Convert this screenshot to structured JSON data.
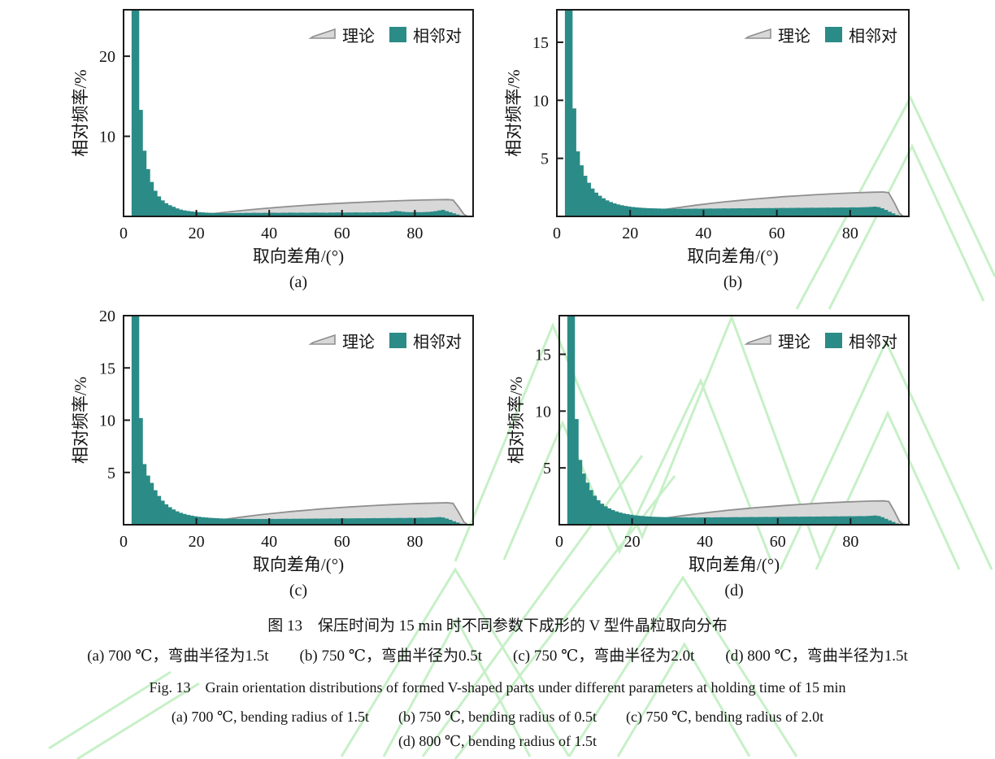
{
  "figure": {
    "captions": {
      "zh_title": "图 13　保压时间为 15 min 时不同参数下成形的 V 型件晶粒取向分布",
      "zh_sub": "(a) 700 ℃，弯曲半径为1.5t　　(b) 750 ℃，弯曲半径为0.5t　　(c) 750 ℃，弯曲半径为2.0t　　(d) 800 ℃，弯曲半径为1.5t",
      "en_title": "Fig. 13　Grain orientation distributions of formed V-shaped parts under different parameters at holding time of 15 min",
      "en_sub1": "(a) 700 ℃, bending radius of 1.5t　　(b) 750 ℃, bending radius of 0.5t　　(c) 750 ℃, bending radius of 2.0t",
      "en_sub2": "(d) 800 ℃, bending radius of 1.5t"
    }
  },
  "colors": {
    "bar": "#2b8b87",
    "theory_fill": "#d8d8d8",
    "theory_stroke": "#8f8f8f",
    "axis": "#1a1a1a",
    "watermark": "#c7f0c7"
  },
  "legend": {
    "theory_label": "理论",
    "neighbor_label": "相邻对"
  },
  "axes": {
    "x_label": "取向差角/(°)",
    "y_label": "相对频率/%",
    "x_ticks": [
      0,
      20,
      40,
      60,
      80
    ],
    "x_max": 96
  },
  "theory_curve": [
    [
      14,
      0
    ],
    [
      18,
      0.06
    ],
    [
      22,
      0.22
    ],
    [
      26,
      0.42
    ],
    [
      30,
      0.62
    ],
    [
      34,
      0.8
    ],
    [
      38,
      0.97
    ],
    [
      42,
      1.12
    ],
    [
      46,
      1.26
    ],
    [
      50,
      1.38
    ],
    [
      54,
      1.5
    ],
    [
      58,
      1.6
    ],
    [
      62,
      1.7
    ],
    [
      66,
      1.78
    ],
    [
      70,
      1.86
    ],
    [
      74,
      1.93
    ],
    [
      78,
      1.99
    ],
    [
      82,
      2.04
    ],
    [
      86,
      2.08
    ],
    [
      89,
      2.1
    ],
    [
      90.5,
      2.04
    ],
    [
      92,
      1.2
    ],
    [
      93.5,
      0.25
    ],
    [
      94.5,
      0
    ]
  ],
  "chart_data": [
    {
      "type": "bar",
      "name": "a",
      "sublabel": "(a)",
      "condition": "700 ℃, bending radius of 1.5t",
      "title": "",
      "xlabel": "取向差角/(°)",
      "ylabel": "相对频率/%",
      "x_max": 96,
      "y_max": 25.8,
      "y_ticks": [
        10,
        20
      ],
      "bin_start": 2.2,
      "bin_width": 1,
      "series_label": "相邻对",
      "values": [
        26.5,
        26.5,
        13.3,
        8.2,
        5.9,
        4.3,
        3.2,
        2.5,
        2.0,
        1.65,
        1.4,
        1.2,
        1.0,
        0.85,
        0.75,
        0.68,
        0.62,
        0.57,
        0.53,
        0.5,
        0.47,
        0.45,
        0.43,
        0.42,
        0.41,
        0.4,
        0.4,
        0.42,
        0.41,
        0.43,
        0.42,
        0.44,
        0.43,
        0.45,
        0.44,
        0.43,
        0.45,
        0.44,
        0.46,
        0.45,
        0.44,
        0.46,
        0.45,
        0.47,
        0.46,
        0.45,
        0.47,
        0.46,
        0.45,
        0.47,
        0.48,
        0.46,
        0.47,
        0.45,
        0.48,
        0.47,
        0.49,
        0.48,
        0.47,
        0.49,
        0.48,
        0.5,
        0.49,
        0.48,
        0.5,
        0.49,
        0.51,
        0.5,
        0.52,
        0.51,
        0.53,
        0.62,
        0.68,
        0.64,
        0.58,
        0.54,
        0.52,
        0.54,
        0.53,
        0.52,
        0.54,
        0.56,
        0.6,
        0.66,
        0.74,
        0.82,
        0.66,
        0.52,
        0.38,
        0.24,
        0.12
      ]
    },
    {
      "type": "bar",
      "name": "b",
      "sublabel": "(b)",
      "condition": "750 ℃, bending radius of 0.5t",
      "title": "",
      "xlabel": "取向差角/(°)",
      "ylabel": "相对频率/%",
      "x_max": 96,
      "y_max": 17.8,
      "y_ticks": [
        5,
        10,
        15
      ],
      "bin_start": 2.2,
      "bin_width": 1,
      "series_label": "相邻对",
      "values": [
        18.5,
        18.5,
        9.3,
        5.6,
        4.4,
        3.5,
        2.9,
        2.4,
        2.05,
        1.78,
        1.56,
        1.38,
        1.24,
        1.12,
        1.03,
        0.96,
        0.9,
        0.85,
        0.81,
        0.78,
        0.75,
        0.73,
        0.71,
        0.7,
        0.69,
        0.68,
        0.67,
        0.67,
        0.66,
        0.66,
        0.65,
        0.66,
        0.65,
        0.66,
        0.66,
        0.67,
        0.66,
        0.67,
        0.67,
        0.68,
        0.67,
        0.68,
        0.68,
        0.69,
        0.68,
        0.69,
        0.69,
        0.7,
        0.69,
        0.7,
        0.7,
        0.71,
        0.7,
        0.71,
        0.71,
        0.72,
        0.71,
        0.72,
        0.72,
        0.73,
        0.72,
        0.73,
        0.73,
        0.74,
        0.73,
        0.74,
        0.74,
        0.75,
        0.74,
        0.75,
        0.75,
        0.76,
        0.75,
        0.76,
        0.76,
        0.77,
        0.76,
        0.77,
        0.78,
        0.77,
        0.78,
        0.79,
        0.8,
        0.82,
        0.84,
        0.8,
        0.7,
        0.56,
        0.4,
        0.26,
        0.12
      ]
    },
    {
      "type": "bar",
      "name": "c",
      "sublabel": "(c)",
      "condition": "750 ℃, bending radius of 2.0t",
      "title": "",
      "xlabel": "取向差角/(°)",
      "ylabel": "相对频率/%",
      "x_max": 96,
      "y_max": 20,
      "y_ticks": [
        5,
        10,
        15,
        20
      ],
      "bin_start": 2.2,
      "bin_width": 1,
      "series_label": "相邻对",
      "values": [
        24,
        24,
        10.2,
        5.8,
        4.7,
        4.0,
        3.3,
        2.75,
        2.3,
        1.95,
        1.68,
        1.46,
        1.28,
        1.14,
        1.03,
        0.94,
        0.87,
        0.81,
        0.76,
        0.72,
        0.69,
        0.66,
        0.64,
        0.62,
        0.6,
        0.59,
        0.58,
        0.57,
        0.57,
        0.56,
        0.56,
        0.55,
        0.55,
        0.55,
        0.55,
        0.55,
        0.55,
        0.55,
        0.56,
        0.55,
        0.56,
        0.56,
        0.57,
        0.56,
        0.57,
        0.57,
        0.58,
        0.57,
        0.58,
        0.58,
        0.59,
        0.58,
        0.59,
        0.59,
        0.6,
        0.59,
        0.6,
        0.6,
        0.61,
        0.6,
        0.61,
        0.61,
        0.62,
        0.61,
        0.62,
        0.62,
        0.63,
        0.62,
        0.63,
        0.63,
        0.64,
        0.63,
        0.64,
        0.65,
        0.64,
        0.65,
        0.66,
        0.65,
        0.66,
        0.67,
        0.66,
        0.67,
        0.69,
        0.71,
        0.73,
        0.69,
        0.59,
        0.47,
        0.33,
        0.21,
        0.1
      ]
    },
    {
      "type": "bar",
      "name": "d",
      "sublabel": "(d)",
      "condition": "800 ℃, bending radius of 1.5t",
      "title": "",
      "xlabel": "取向差角/(°)",
      "ylabel": "相对频率/%",
      "x_max": 96,
      "y_max": 18.4,
      "y_ticks": [
        5,
        10,
        15
      ],
      "bin_start": 2.2,
      "bin_width": 1,
      "series_label": "相邻对",
      "values": [
        20,
        20,
        9.3,
        5.7,
        4.5,
        3.7,
        3.05,
        2.55,
        2.15,
        1.85,
        1.62,
        1.44,
        1.29,
        1.17,
        1.07,
        0.99,
        0.93,
        0.88,
        0.83,
        0.8,
        0.77,
        0.74,
        0.72,
        0.7,
        0.69,
        0.68,
        0.67,
        0.66,
        0.65,
        0.65,
        0.64,
        0.64,
        0.64,
        0.63,
        0.64,
        0.63,
        0.64,
        0.64,
        0.65,
        0.64,
        0.65,
        0.65,
        0.66,
        0.65,
        0.66,
        0.66,
        0.67,
        0.66,
        0.67,
        0.67,
        0.68,
        0.67,
        0.68,
        0.68,
        0.69,
        0.68,
        0.69,
        0.69,
        0.7,
        0.69,
        0.7,
        0.7,
        0.71,
        0.7,
        0.71,
        0.71,
        0.72,
        0.71,
        0.72,
        0.72,
        0.73,
        0.72,
        0.73,
        0.74,
        0.73,
        0.74,
        0.74,
        0.75,
        0.74,
        0.75,
        0.76,
        0.75,
        0.77,
        0.79,
        0.81,
        0.77,
        0.66,
        0.52,
        0.38,
        0.24,
        0.11
      ]
    }
  ]
}
